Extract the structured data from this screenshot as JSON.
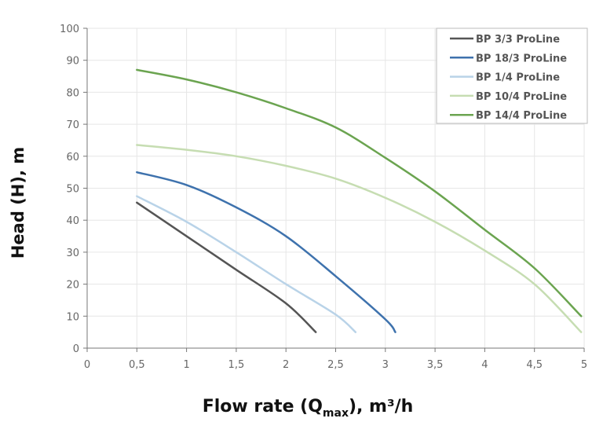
{
  "chart_data": {
    "type": "line",
    "title": "",
    "xlabel": "Flow rate (Q",
    "xlabel_sub": "max",
    "xlabel_tail": "), m³/h",
    "ylabel": "Head (H), m",
    "xlim": [
      0,
      5
    ],
    "ylim": [
      0,
      100
    ],
    "xticks": [
      0,
      0.5,
      1,
      1.5,
      2,
      2.5,
      3,
      3.5,
      4,
      4.5,
      5
    ],
    "xtick_labels": [
      "0",
      "0,5",
      "1",
      "1,5",
      "2",
      "2,5",
      "3",
      "3,5",
      "4",
      "4,5",
      "5"
    ],
    "yticks": [
      0,
      10,
      20,
      30,
      40,
      50,
      60,
      70,
      80,
      90,
      100
    ],
    "ytick_labels": [
      "0",
      "10",
      "20",
      "30",
      "40",
      "50",
      "60",
      "70",
      "80",
      "90",
      "100"
    ],
    "grid": true,
    "legend_position": "top-right",
    "series": [
      {
        "name": "BP 3/3 ProLine",
        "color": "#555555",
        "x": [
          0.5,
          1,
          1.5,
          2,
          2.3
        ],
        "y": [
          45.5,
          35,
          24.5,
          14,
          5
        ]
      },
      {
        "name": "BP 18/3 ProLine",
        "color": "#3e72ad",
        "x": [
          0.5,
          1,
          1.5,
          2,
          2.5,
          3,
          3.1
        ],
        "y": [
          55,
          51,
          44,
          35,
          22.5,
          9,
          5
        ]
      },
      {
        "name": "BP 1/4 ProLine",
        "color": "#b9d3e8",
        "x": [
          0.5,
          1,
          1.5,
          2,
          2.5,
          2.7
        ],
        "y": [
          47.5,
          39.5,
          30,
          20,
          10.5,
          5
        ]
      },
      {
        "name": "BP 10/4 ProLine",
        "color": "#c6ddb2",
        "x": [
          0.5,
          1,
          1.5,
          2,
          2.5,
          3,
          3.5,
          4,
          4.5,
          4.97
        ],
        "y": [
          63.5,
          62,
          60,
          57,
          53,
          47,
          39.5,
          30.5,
          20,
          5
        ]
      },
      {
        "name": "BP 14/4 ProLine",
        "color": "#6ba450",
        "x": [
          0.5,
          1,
          1.5,
          2,
          2.5,
          3,
          3.5,
          4,
          4.5,
          4.97
        ],
        "y": [
          87,
          84,
          80,
          75,
          69,
          59.5,
          49,
          37,
          25,
          10
        ]
      }
    ]
  }
}
